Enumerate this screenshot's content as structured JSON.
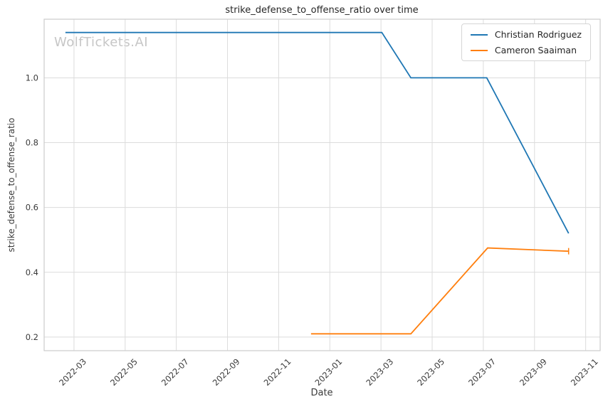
{
  "watermark": "WolfTickets.AI",
  "chart_data": {
    "type": "line",
    "title": "strike_defense_to_offense_ratio over time",
    "xlabel": "Date",
    "ylabel": "strike_defense_to_offense_ratio",
    "x_tick_labels": [
      "2022-03",
      "2022-05",
      "2022-07",
      "2022-09",
      "2022-11",
      "2023-01",
      "2023-03",
      "2023-05",
      "2023-07",
      "2023-09",
      "2023-11"
    ],
    "y_tick_labels": [
      "0.2",
      "0.4",
      "0.6",
      "0.8",
      "1.0"
    ],
    "xlim": [
      "2022-01-26",
      "2023-11-18"
    ],
    "ylim": [
      0.158,
      1.181
    ],
    "grid": true,
    "legend_position": "upper right",
    "series": [
      {
        "name": "Christian Rodriguez",
        "color": "#1f77b4",
        "points": [
          [
            "2022-02-21",
            1.14
          ],
          [
            "2023-03-02",
            1.14
          ],
          [
            "2023-04-06",
            1.0
          ],
          [
            "2023-07-05",
            1.0
          ],
          [
            "2023-10-11",
            0.52
          ]
        ]
      },
      {
        "name": "Cameron Saaiman",
        "color": "#ff7f0e",
        "end_cap": true,
        "points": [
          [
            "2022-12-09",
            0.21
          ],
          [
            "2023-04-06",
            0.21
          ],
          [
            "2023-07-06",
            0.475
          ],
          [
            "2023-10-11",
            0.465
          ]
        ]
      }
    ],
    "styles": {
      "background": "#ffffff",
      "grid_color": "#dcdcdc",
      "spine_color": "#cccccc",
      "tick_label_color": "#3a3a3a",
      "title_color": "#262626",
      "watermark_color": "#c6c6c6"
    }
  }
}
